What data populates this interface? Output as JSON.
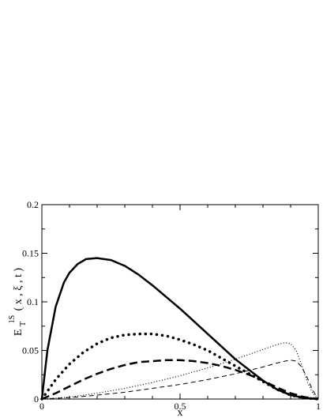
{
  "chart_data": {
    "type": "line",
    "title": "",
    "xlabel": "x",
    "ylabel": {
      "main": "E",
      "sub": "T",
      "sup": "1S",
      "args": "( x , ξ , t )"
    },
    "xlim": [
      0,
      1
    ],
    "ylim": [
      0,
      0.2
    ],
    "x_ticks": [
      {
        "value": 0,
        "label": "0"
      },
      {
        "value": 0.5,
        "label": "0.5"
      },
      {
        "value": 1,
        "label": "1"
      }
    ],
    "y_ticks": [
      {
        "value": 0,
        "label": "0"
      },
      {
        "value": 0.05,
        "label": "0.05"
      },
      {
        "value": 0.1,
        "label": "0.1"
      },
      {
        "value": 0.15,
        "label": "0.15"
      },
      {
        "value": 0.2,
        "label": "0.2"
      }
    ],
    "grid": false,
    "legend": "none",
    "series": [
      {
        "style": "thick-solid",
        "color": "#000000",
        "x": [
          0,
          0.02,
          0.05,
          0.08,
          0.1,
          0.13,
          0.16,
          0.2,
          0.25,
          0.3,
          0.35,
          0.4,
          0.45,
          0.5,
          0.55,
          0.6,
          0.65,
          0.7,
          0.75,
          0.8,
          0.85,
          0.9,
          0.95,
          1.0
        ],
        "y": [
          0,
          0.05,
          0.095,
          0.12,
          0.13,
          0.139,
          0.144,
          0.145,
          0.143,
          0.137,
          0.128,
          0.117,
          0.105,
          0.093,
          0.08,
          0.067,
          0.054,
          0.041,
          0.03,
          0.019,
          0.01,
          0.004,
          0.001,
          0
        ]
      },
      {
        "style": "thick-dotted",
        "color": "#000000",
        "x": [
          0,
          0.05,
          0.1,
          0.15,
          0.2,
          0.25,
          0.3,
          0.35,
          0.4,
          0.45,
          0.5,
          0.55,
          0.6,
          0.65,
          0.7,
          0.75,
          0.8,
          0.85,
          0.9,
          0.95,
          1.0
        ],
        "y": [
          0,
          0.02,
          0.036,
          0.048,
          0.057,
          0.063,
          0.066,
          0.067,
          0.067,
          0.065,
          0.061,
          0.056,
          0.05,
          0.042,
          0.034,
          0.026,
          0.018,
          0.01,
          0.004,
          0.001,
          0
        ]
      },
      {
        "style": "thick-dashed",
        "color": "#000000",
        "x": [
          0,
          0.05,
          0.1,
          0.15,
          0.2,
          0.25,
          0.3,
          0.35,
          0.4,
          0.45,
          0.5,
          0.55,
          0.6,
          0.65,
          0.7,
          0.75,
          0.8,
          0.85,
          0.9,
          0.95,
          1.0
        ],
        "y": [
          0,
          0.006,
          0.013,
          0.02,
          0.026,
          0.031,
          0.035,
          0.038,
          0.039,
          0.04,
          0.04,
          0.039,
          0.037,
          0.034,
          0.03,
          0.025,
          0.019,
          0.012,
          0.006,
          0.002,
          0
        ]
      },
      {
        "style": "thin-dotted",
        "color": "#000000",
        "x": [
          0,
          0.1,
          0.2,
          0.3,
          0.4,
          0.5,
          0.6,
          0.7,
          0.75,
          0.8,
          0.85,
          0.88,
          0.9,
          0.92,
          0.94,
          0.96,
          0.98,
          1.0
        ],
        "y": [
          0,
          0.002,
          0.006,
          0.011,
          0.017,
          0.024,
          0.032,
          0.041,
          0.046,
          0.051,
          0.056,
          0.058,
          0.057,
          0.05,
          0.035,
          0.018,
          0.006,
          0
        ]
      },
      {
        "style": "thin-dashed",
        "color": "#000000",
        "x": [
          0,
          0.1,
          0.2,
          0.3,
          0.4,
          0.5,
          0.6,
          0.7,
          0.8,
          0.85,
          0.88,
          0.9,
          0.92,
          0.94,
          0.96,
          0.98,
          1.0
        ],
        "y": [
          0,
          0.0015,
          0.004,
          0.007,
          0.011,
          0.015,
          0.02,
          0.026,
          0.033,
          0.037,
          0.039,
          0.04,
          0.039,
          0.033,
          0.022,
          0.009,
          0
        ]
      }
    ]
  }
}
